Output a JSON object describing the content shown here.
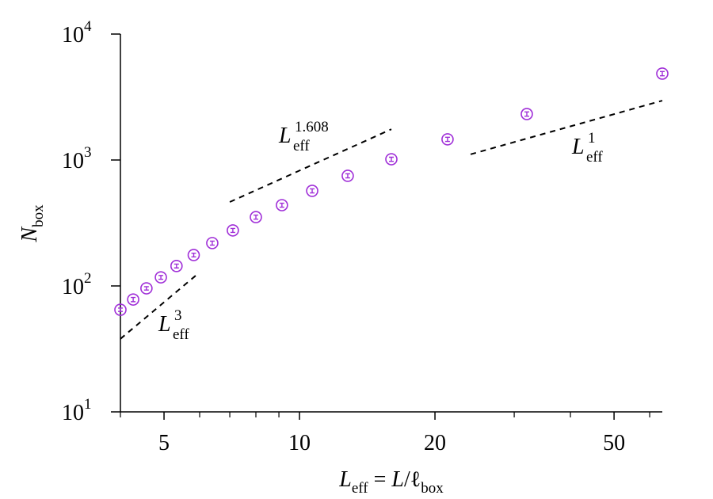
{
  "chart_data": {
    "type": "scatter",
    "xlabel": [
      "L",
      "eff",
      " = ",
      "L",
      "/ℓ",
      "box"
    ],
    "ylabel": [
      "N",
      "box"
    ],
    "x": [
      4,
      4.27,
      4.57,
      4.92,
      5.33,
      5.82,
      6.4,
      7.11,
      8,
      9.14,
      10.67,
      12.8,
      16,
      21.33,
      32,
      64
    ],
    "series": [
      {
        "color": "#a02fd8",
        "values": [
          64.7,
          78,
          95.7,
          117,
          144,
          176,
          219,
          276,
          352,
          438,
          569,
          749,
          1014,
          1459,
          2318,
          4853
        ],
        "errors": [
          2,
          3,
          3,
          4,
          5,
          6,
          8,
          10,
          13,
          16,
          21,
          28,
          38,
          55,
          90,
          190
        ]
      }
    ],
    "guides": [
      {
        "x": [
          4,
          5.9
        ],
        "y": [
          38,
          122
        ],
        "label": [
          "L",
          "eff",
          "3"
        ]
      },
      {
        "x": [
          7,
          16
        ],
        "y": [
          464,
          1755
        ],
        "label": [
          "L",
          "eff",
          "1.608"
        ]
      },
      {
        "x": [
          24,
          64
        ],
        "y": [
          1110,
          2960
        ],
        "label": [
          "L",
          "eff",
          "1"
        ]
      }
    ],
    "xlog": true,
    "ylog": true,
    "xlim": [
      4,
      64
    ],
    "ylim": [
      10,
      10000
    ],
    "xticks": [
      5,
      10,
      20,
      50
    ],
    "xminorticks": [
      4,
      6,
      7,
      8,
      9,
      30,
      40,
      60
    ],
    "yticks": [
      {
        "value": 10,
        "label": "10",
        "exponent": "1"
      },
      {
        "value": 100,
        "label": "10",
        "exponent": "2"
      },
      {
        "value": 1000,
        "label": "10",
        "exponent": "3"
      },
      {
        "value": 10000,
        "label": "10",
        "exponent": "4"
      }
    ]
  }
}
